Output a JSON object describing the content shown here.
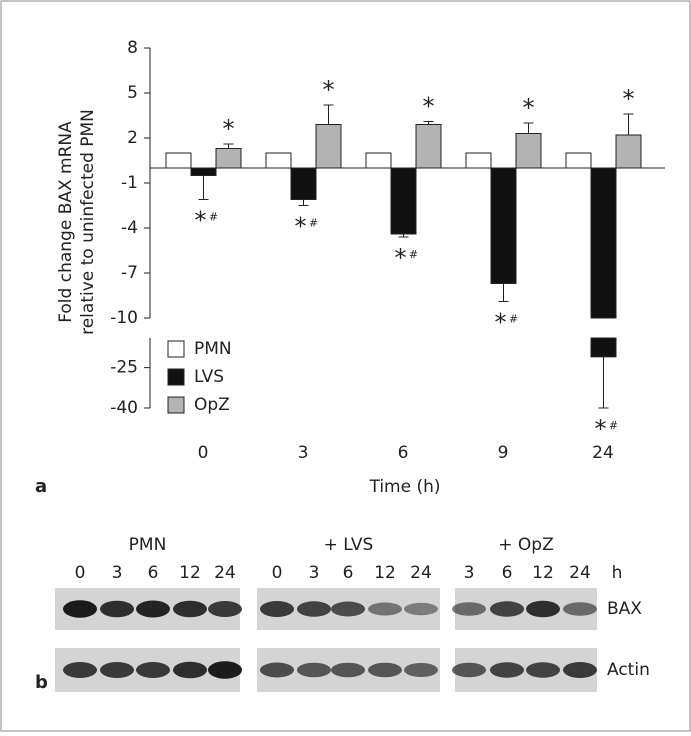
{
  "chart_data": {
    "type": "bar",
    "panel_label": "a",
    "y_label_lines": [
      "Fold change BAX mRNA",
      "relative to uninfected PMN"
    ],
    "x_label": "Time (h)",
    "categories": [
      "0",
      "3",
      "6",
      "9",
      "24"
    ],
    "segments": [
      {
        "ylim": [
          -10,
          8
        ],
        "yticks": [
          8,
          5,
          2,
          -1,
          -4,
          -7,
          -10
        ]
      },
      {
        "ylim": [
          -40,
          -14
        ],
        "yticks": [
          -25,
          -40
        ]
      }
    ],
    "series": [
      {
        "name": "PMN",
        "color": "#ffffff",
        "values": [
          1,
          1,
          1,
          1,
          1
        ]
      },
      {
        "name": "LVS",
        "color": "#111111",
        "values": [
          -0.5,
          -2.1,
          -4.4,
          -7.7,
          -21
        ],
        "errors": [
          1.6,
          0.4,
          0.2,
          1.2,
          19
        ]
      },
      {
        "name": "OpZ",
        "color": "#b3b3b3",
        "values": [
          1.3,
          2.9,
          2.9,
          2.3,
          2.2
        ],
        "errors": [
          0.3,
          1.3,
          0.2,
          0.7,
          1.4
        ]
      }
    ],
    "annotations": {
      "vs_pmn": "*",
      "vs_opz": "#"
    },
    "legend": "lower-left"
  },
  "blot": {
    "panel_label": "b",
    "groups": [
      {
        "label": "PMN",
        "lanes": [
          "0",
          "3",
          "6",
          "12",
          "24"
        ]
      },
      {
        "label": "+ LVS",
        "lanes": [
          "0",
          "3",
          "6",
          "12",
          "24"
        ]
      },
      {
        "label": "+ OpZ",
        "lanes": [
          "3",
          "6",
          "12",
          "24"
        ]
      }
    ],
    "unit": "h",
    "rows": [
      "BAX",
      "Actin"
    ]
  }
}
